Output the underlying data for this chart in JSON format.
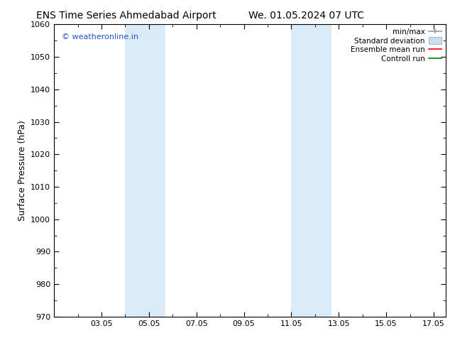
{
  "title_left": "ENS Time Series Ahmedabad Airport",
  "title_right": "We. 01.05.2024 07 UTC",
  "ylabel": "Surface Pressure (hPa)",
  "ylim": [
    970,
    1060
  ],
  "yticks": [
    970,
    980,
    990,
    1000,
    1010,
    1020,
    1030,
    1040,
    1050,
    1060
  ],
  "xlim": [
    1.0,
    17.5
  ],
  "xtick_labels": [
    "03.05",
    "05.05",
    "07.05",
    "09.05",
    "11.05",
    "13.05",
    "15.05",
    "17.05"
  ],
  "xtick_positions": [
    3,
    5,
    7,
    9,
    11,
    13,
    15,
    17
  ],
  "shaded_bands": [
    {
      "x_start": 4.0,
      "x_end": 5.7,
      "color": "#daeaf7"
    },
    {
      "x_start": 11.0,
      "x_end": 12.7,
      "color": "#daeaf7"
    }
  ],
  "watermark_text": "© weatheronline.in",
  "watermark_color": "#2255cc",
  "bg_color": "#ffffff",
  "title_fontsize": 10,
  "label_fontsize": 9,
  "tick_fontsize": 8
}
